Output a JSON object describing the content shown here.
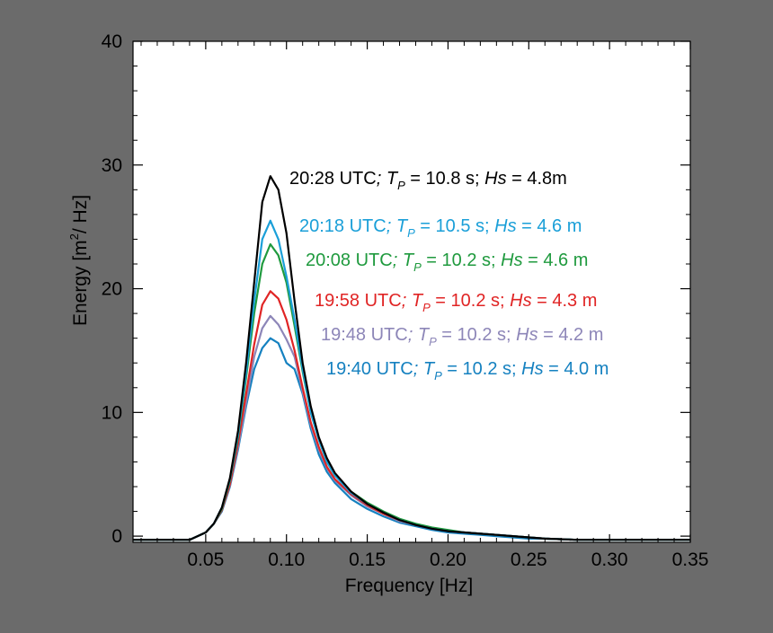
{
  "colors": {
    "background": "#6b6b6b",
    "plot_area": "#ffffff",
    "frame": "#000000"
  },
  "chart_data": {
    "type": "line",
    "title": "",
    "xlabel": "Frequency [Hz]",
    "ylabel_parts": {
      "before": "Energy [m",
      "sup": "2",
      "after": "/ Hz]"
    },
    "xlim": [
      0.005,
      0.35
    ],
    "ylim": [
      -0.5,
      40
    ],
    "x_ticks": [
      "0.05",
      "0.10",
      "0.15",
      "0.20",
      "0.25",
      "0.30",
      "0.35"
    ],
    "y_ticks": [
      "0",
      "10",
      "20",
      "30",
      "40"
    ],
    "grid": false,
    "x": [
      0.005,
      0.01,
      0.02,
      0.03,
      0.04,
      0.05,
      0.055,
      0.06,
      0.065,
      0.07,
      0.075,
      0.08,
      0.085,
      0.09,
      0.095,
      0.1,
      0.105,
      0.11,
      0.115,
      0.12,
      0.125,
      0.13,
      0.14,
      0.15,
      0.16,
      0.17,
      0.18,
      0.19,
      0.2,
      0.21,
      0.22,
      0.23,
      0.24,
      0.25,
      0.26,
      0.28,
      0.3,
      0.32,
      0.35
    ],
    "series": [
      {
        "color": "#000000",
        "values": [
          -0.3,
          -0.3,
          -0.3,
          -0.3,
          -0.3,
          0.3,
          1.0,
          2.3,
          4.7,
          8.5,
          14.0,
          20.5,
          27.0,
          29.1,
          28.0,
          24.5,
          19.0,
          14.0,
          10.5,
          8.0,
          6.3,
          5.1,
          3.6,
          2.6,
          1.9,
          1.3,
          0.9,
          0.6,
          0.4,
          0.3,
          0.2,
          0.1,
          0.0,
          -0.1,
          -0.2,
          -0.3,
          -0.3,
          -0.3,
          -0.3
        ],
        "label": {
          "time": "20:28 UTC",
          "tp_sym": "T",
          "tp_sub": "P",
          "tp_text": " =  10.8 s; ",
          "hs_sym": "Hs",
          "hs_text": " = 4.8m"
        }
      },
      {
        "color": "#1a9fd8",
        "values": [
          -0.3,
          -0.3,
          -0.3,
          -0.3,
          -0.3,
          0.3,
          1.0,
          2.3,
          4.6,
          8.2,
          13.2,
          19.0,
          24.0,
          25.5,
          24.0,
          21.0,
          17.5,
          13.5,
          10.0,
          7.8,
          6.0,
          4.9,
          3.5,
          2.6,
          1.9,
          1.3,
          0.9,
          0.6,
          0.4,
          0.3,
          0.2,
          0.1,
          0.0,
          -0.1,
          -0.2,
          -0.3,
          -0.3,
          -0.3,
          -0.3
        ],
        "label": {
          "time": "20:18 UTC",
          "tp_sym": "T",
          "tp_sub": "P",
          "tp_text": " =  10.5 s; ",
          "hs_sym": "Hs",
          "hs_text": " = 4.6 m"
        }
      },
      {
        "color": "#1f9a3e",
        "values": [
          -0.3,
          -0.3,
          -0.3,
          -0.3,
          -0.3,
          0.3,
          1.0,
          2.2,
          4.5,
          8.0,
          12.8,
          18.0,
          22.0,
          23.6,
          22.7,
          20.5,
          17.0,
          13.3,
          10.0,
          7.8,
          6.0,
          4.9,
          3.6,
          2.7,
          2.0,
          1.4,
          1.0,
          0.7,
          0.5,
          0.3,
          0.2,
          0.1,
          0.0,
          -0.1,
          -0.2,
          -0.3,
          -0.3,
          -0.3,
          -0.3
        ],
        "label": {
          "time": "20:08 UTC",
          "tp_sym": "T",
          "tp_sub": "P",
          "tp_text": " =  10.2 s; ",
          "hs_sym": "Hs",
          "hs_text": " = 4.6 m"
        }
      },
      {
        "color": "#e02424",
        "values": [
          -0.3,
          -0.3,
          -0.3,
          -0.3,
          -0.3,
          0.3,
          1.0,
          2.1,
          4.2,
          7.5,
          11.5,
          15.5,
          18.7,
          19.8,
          19.2,
          17.5,
          15.0,
          12.0,
          9.2,
          7.2,
          5.6,
          4.6,
          3.4,
          2.5,
          1.8,
          1.3,
          0.9,
          0.6,
          0.4,
          0.3,
          0.2,
          0.1,
          0.0,
          -0.1,
          -0.2,
          -0.3,
          -0.3,
          -0.3,
          -0.3
        ],
        "label": {
          "time": "19:58 UTC",
          "tp_sym": "T",
          "tp_sub": "P",
          "tp_text": " =  10.2 s; ",
          "hs_sym": "Hs",
          "hs_text": " = 4.3 m"
        }
      },
      {
        "color": "#8d86b8",
        "values": [
          -0.3,
          -0.3,
          -0.3,
          -0.3,
          -0.3,
          0.3,
          1.0,
          2.1,
          4.1,
          7.2,
          10.8,
          14.5,
          16.8,
          17.8,
          17.1,
          15.9,
          14.5,
          11.7,
          9.0,
          7.0,
          5.5,
          4.5,
          3.3,
          2.4,
          1.8,
          1.2,
          0.9,
          0.6,
          0.4,
          0.3,
          0.2,
          0.1,
          0.0,
          -0.1,
          -0.2,
          -0.3,
          -0.3,
          -0.3,
          -0.3
        ],
        "label": {
          "time": "19:48 UTC",
          "tp_sym": "T",
          "tp_sub": "P",
          "tp_text": " =  10.2 s; ",
          "hs_sym": "Hs",
          "hs_text": " = 4.2 m"
        }
      },
      {
        "color": "#1581c0",
        "values": [
          -0.3,
          -0.3,
          -0.3,
          -0.3,
          -0.3,
          0.3,
          1.0,
          2.0,
          4.0,
          7.0,
          10.5,
          13.5,
          15.2,
          16.0,
          15.6,
          14.0,
          13.5,
          11.5,
          8.7,
          6.6,
          5.2,
          4.3,
          3.0,
          2.2,
          1.6,
          1.1,
          0.8,
          0.5,
          0.3,
          0.2,
          0.1,
          0.0,
          -0.1,
          -0.2,
          -0.2,
          -0.3,
          -0.3,
          -0.3,
          -0.3
        ],
        "label": {
          "time": "19:40 UTC",
          "tp_sym": "T",
          "tp_sub": "P",
          "tp_text": " =  10.2 s; ",
          "hs_sym": "Hs",
          "hs_text": " = 4.0 m"
        }
      }
    ]
  }
}
